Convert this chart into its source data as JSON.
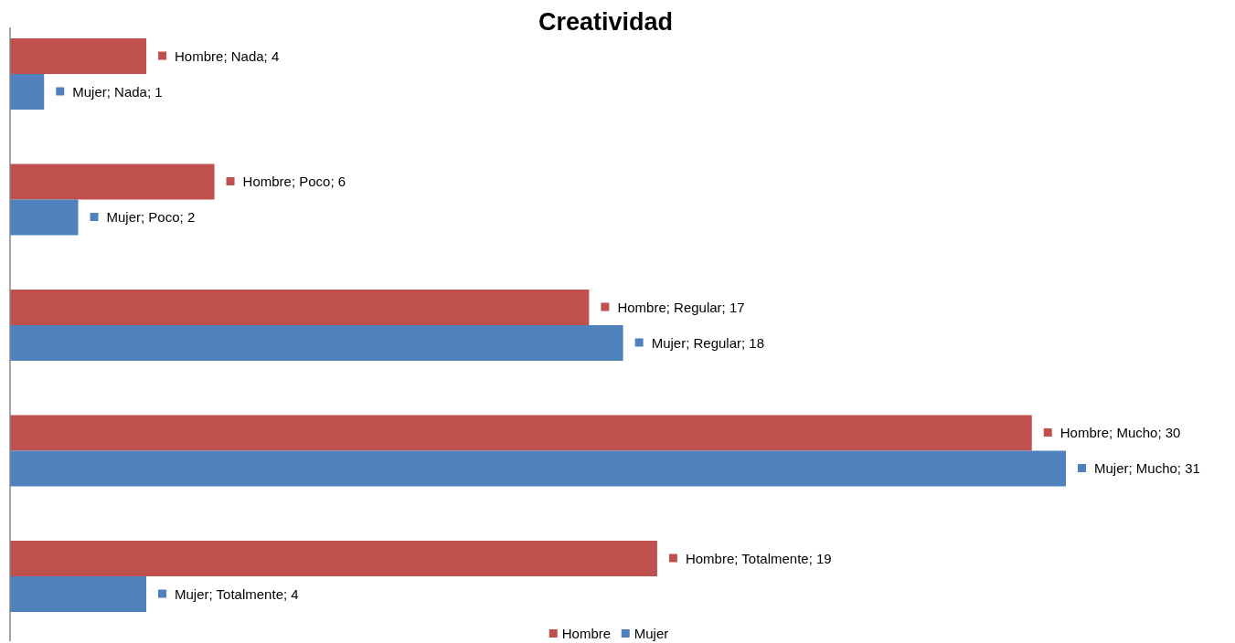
{
  "chart_data": {
    "type": "bar",
    "orientation": "horizontal",
    "title": "Creatividad",
    "categories": [
      null,
      null,
      null,
      null,
      null
    ],
    "legend": "bottom",
    "series": [
      {
        "name": "Hombre",
        "color": "#c0504d",
        "values": [
          4,
          6,
          17,
          30,
          19
        ],
        "value_labels": [
          "Hombre; Nada; 4",
          "Hombre; Poco; 6",
          "Hombre; Regular; 17",
          "Hombre; Mucho; 30",
          "Hombre; Totalmente; 19"
        ]
      },
      {
        "name": "Mujer",
        "color": "#4f81bd",
        "values": [
          1,
          2,
          18,
          31,
          4
        ],
        "value_labels": [
          "Mujer; Nada; 1",
          "Mujer; Poco; 2",
          "Mujer; Regular; 18",
          "Mujer; Mucho; 31",
          "Mujer; Totalmente; 4"
        ]
      }
    ]
  }
}
